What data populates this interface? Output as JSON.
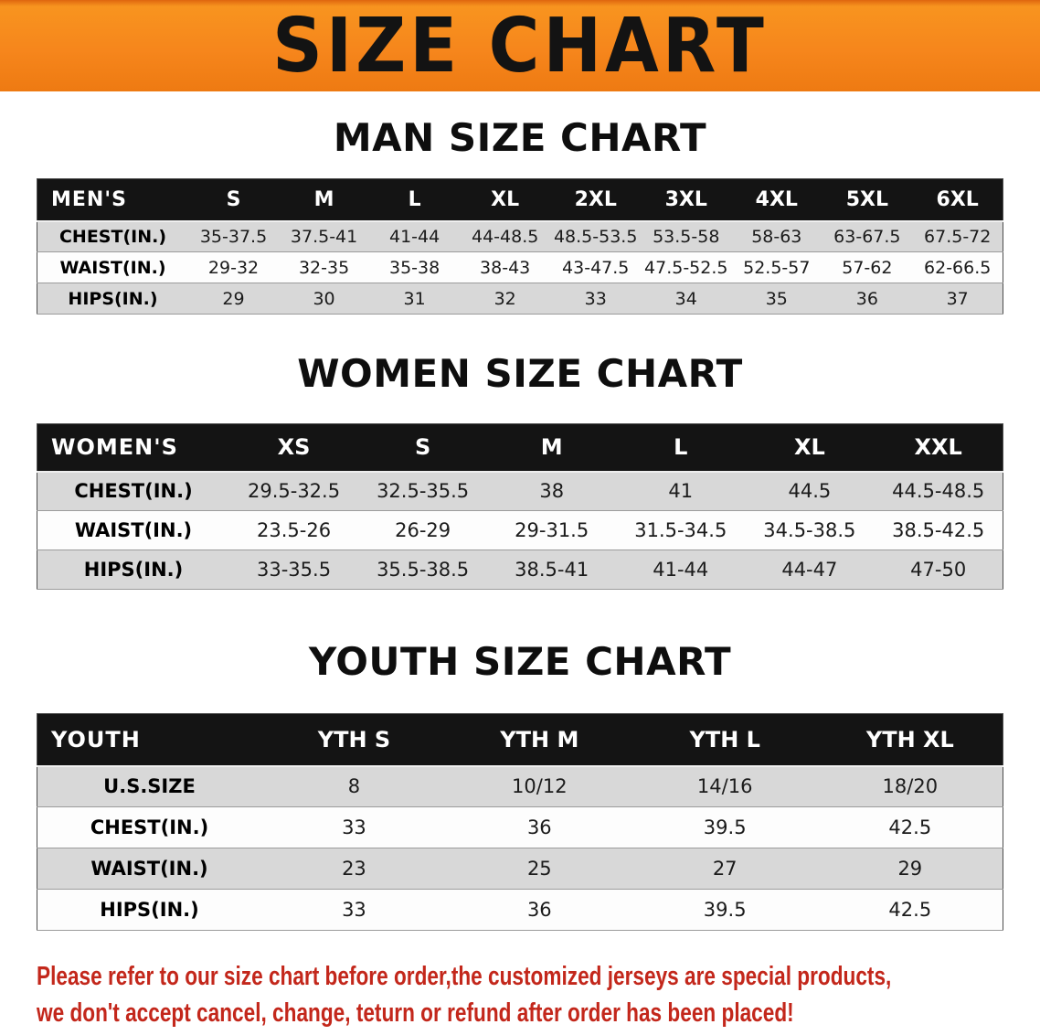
{
  "banner": {
    "title": "SIZE CHART"
  },
  "sections": [
    {
      "id": "men",
      "heading": "MAN SIZE CHART",
      "table": {
        "header": [
          "MEN'S",
          "S",
          "M",
          "L",
          "XL",
          "2XL",
          "3XL",
          "4XL",
          "5XL",
          "6XL"
        ],
        "rows": [
          [
            "CHEST(IN.)",
            "35-37.5",
            "37.5-41",
            "41-44",
            "44-48.5",
            "48.5-53.5",
            "53.5-58",
            "58-63",
            "63-67.5",
            "67.5-72"
          ],
          [
            "WAIST(IN.)",
            "29-32",
            "32-35",
            "35-38",
            "38-43",
            "43-47.5",
            "47.5-52.5",
            "52.5-57",
            "57-62",
            "62-66.5"
          ],
          [
            "HIPS(IN.)",
            "29",
            "30",
            "31",
            "32",
            "33",
            "34",
            "35",
            "36",
            "37"
          ]
        ]
      }
    },
    {
      "id": "women",
      "heading": "WOMEN SIZE CHART",
      "table": {
        "header": [
          "WOMEN'S",
          "XS",
          "S",
          "M",
          "L",
          "XL",
          "XXL"
        ],
        "rows": [
          [
            "CHEST(IN.)",
            "29.5-32.5",
            "32.5-35.5",
            "38",
            "41",
            "44.5",
            "44.5-48.5"
          ],
          [
            "WAIST(IN.)",
            "23.5-26",
            "26-29",
            "29-31.5",
            "31.5-34.5",
            "34.5-38.5",
            "38.5-42.5"
          ],
          [
            "HIPS(IN.)",
            "33-35.5",
            "35.5-38.5",
            "38.5-41",
            "41-44",
            "44-47",
            "47-50"
          ]
        ]
      }
    },
    {
      "id": "youth",
      "heading": "YOUTH SIZE CHART",
      "table": {
        "header": [
          "YOUTH",
          "YTH S",
          "YTH M",
          "YTH L",
          "YTH XL"
        ],
        "rows": [
          [
            "U.S.SIZE",
            "8",
            "10/12",
            "14/16",
            "18/20"
          ],
          [
            "CHEST(IN.)",
            "33",
            "36",
            "39.5",
            "42.5"
          ],
          [
            "WAIST(IN.)",
            "23",
            "25",
            "27",
            "29"
          ],
          [
            "HIPS(IN.)",
            "33",
            "36",
            "39.5",
            "42.5"
          ]
        ]
      }
    }
  ],
  "disclaimer": {
    "line1": "Please refer to our size chart before order,the customized jerseys are special products,",
    "line2": "we don't accept cancel, change, teturn or refund after order has been placed!"
  },
  "colors": {
    "banner_orange": "#F6861C",
    "header_black": "#141414",
    "row_gray": "#D8D8D8",
    "row_white": "#FDFDFD",
    "disclaimer_red": "#C3271B"
  }
}
